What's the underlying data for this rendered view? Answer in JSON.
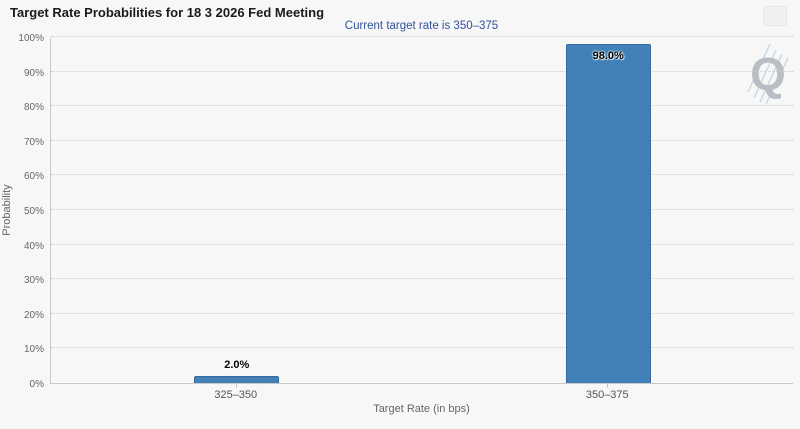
{
  "header": {
    "title": "Target Rate Probabilities for 18 3 2026 Fed Meeting"
  },
  "chart_data": {
    "type": "bar",
    "title": "Target Rate Probabilities for 18 3 2026 Fed Meeting",
    "subtitle": "Current target rate is 350–375",
    "categories": [
      "325–350",
      "350–375"
    ],
    "values": [
      2.0,
      98.0
    ],
    "value_labels": [
      "2.0%",
      "98.0%"
    ],
    "xlabel": "Target Rate (in bps)",
    "ylabel": "Probability",
    "ylim": [
      0,
      100
    ],
    "ytick_step": 10,
    "ytick_labels": [
      "0%",
      "10%",
      "20%",
      "30%",
      "40%",
      "50%",
      "60%",
      "70%",
      "80%",
      "90%",
      "100%"
    ],
    "legend": "none",
    "grid": "dotted-horizontal",
    "bar_color": "#4281b7",
    "bar_border_color": "#38699c"
  },
  "watermark": {
    "letter": "Q"
  },
  "colors": {
    "background": "#f7f7f7",
    "title_text": "#1a1a1a",
    "subtitle_text": "#33519c",
    "axis_text": "#666666",
    "grid": "#cccccc",
    "menu_icon": "#666666"
  }
}
